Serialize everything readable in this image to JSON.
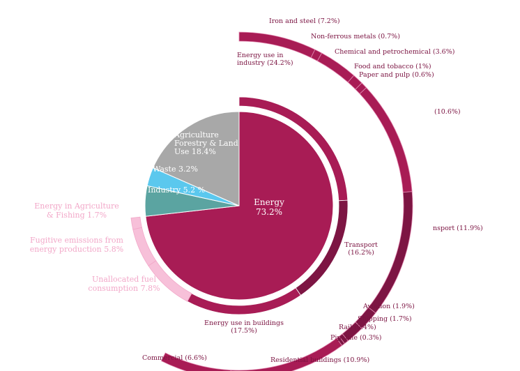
{
  "chart_data": {
    "type": "pie",
    "title": "",
    "colors": {
      "energy": "#a81c55",
      "energy_dark": "#7d1543",
      "agriculture": "#a8a8a8",
      "waste": "#5bc8ee",
      "industry": "#5ba4a1",
      "light_pink": "#f7c0d9",
      "ring_sep": "#e58fb5"
    },
    "inner_pie": [
      {
        "label": "Energy\n73.2%",
        "value": 73.2,
        "color": "energy"
      },
      {
        "label": "Industry 5.2 %",
        "value": 5.2,
        "color": "industry"
      },
      {
        "label": "Waste 3.2%",
        "value": 3.2,
        "color": "waste"
      },
      {
        "label": "Agriculture\nForestry & Land\nUse 18.4%",
        "value": 18.4,
        "color": "agriculture"
      }
    ],
    "middle_ring": [
      {
        "label": "Energy use in\nindustry (24.2%)",
        "value": 24.2,
        "color": "energy"
      },
      {
        "label": "Transport\n(16.2%)",
        "value": 16.2,
        "color": "energy_dark"
      },
      {
        "label": "Energy use in buildings\n(17.5%)",
        "value": 17.5,
        "color": "energy"
      },
      {
        "label": "Unallocated fuel\nconsumption 7.8%",
        "value": 7.8,
        "color": "light_pink"
      },
      {
        "label": "Fugitive emissions from\nenergy production 5.8%",
        "value": 5.8,
        "color": "light_pink"
      },
      {
        "label": "Energy in Agriculture\n& Fishing 1.7%",
        "value": 1.7,
        "color": "light_pink"
      }
    ],
    "outer_ring": [
      {
        "label": "Iron and steel (7.2%)",
        "value": 7.2,
        "color": "energy"
      },
      {
        "label": "Non-ferrous metals (0.7%)",
        "value": 0.7,
        "color": "energy"
      },
      {
        "label": "Chemical and petrochemical (3.6%)",
        "value": 3.6,
        "color": "energy"
      },
      {
        "label": "Food and tobacco (1%)",
        "value": 1.0,
        "color": "energy"
      },
      {
        "label": "Paper and pulp (0.6%)",
        "value": 0.6,
        "color": "energy"
      },
      {
        "label": "(10.6%)",
        "value": 10.6,
        "color": "energy"
      },
      {
        "label": "nsport (11.9%)",
        "value": 11.9,
        "color": "energy_dark"
      },
      {
        "label": "Aviation (1.9%)",
        "value": 1.9,
        "color": "energy_dark"
      },
      {
        "label": "Shipping (1.7%)",
        "value": 1.7,
        "color": "energy_dark"
      },
      {
        "label": "Rail (0.4%)",
        "value": 0.4,
        "color": "energy_dark"
      },
      {
        "label": "Pipeline (0.3%)",
        "value": 0.3,
        "color": "energy_dark"
      },
      {
        "label": "Residential buildings (10.9%)",
        "value": 10.9,
        "color": "energy"
      },
      {
        "label": "Commercial (6.6%)",
        "value": 6.6,
        "color": "energy"
      }
    ]
  }
}
